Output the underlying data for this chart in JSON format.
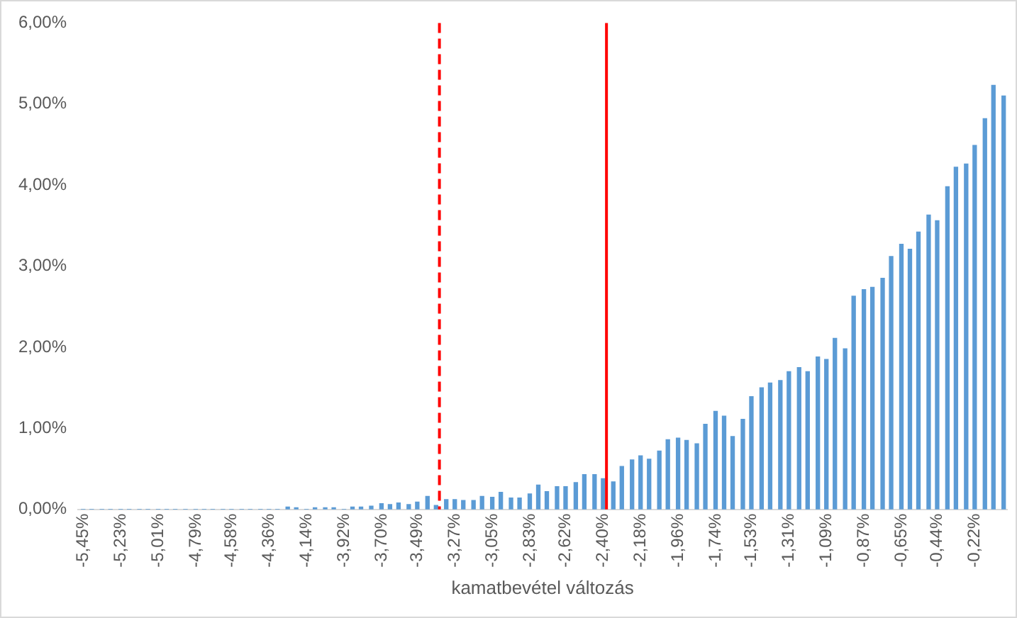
{
  "chart_data": {
    "type": "bar",
    "xlabel": "kamatbevétel változás",
    "color": "#5b9bd5",
    "legend": false,
    "x": [
      -5.45,
      -5.4,
      -5.34,
      -5.29,
      -5.23,
      -5.18,
      -5.12,
      -5.07,
      -5.01,
      -4.96,
      -4.91,
      -4.85,
      -4.79,
      -4.74,
      -4.69,
      -4.63,
      -4.58,
      -4.52,
      -4.47,
      -4.41,
      -4.36,
      -4.31,
      -4.25,
      -4.2,
      -4.14,
      -4.09,
      -4.03,
      -3.98,
      -3.92,
      -3.87,
      -3.82,
      -3.76,
      -3.7,
      -3.65,
      -3.6,
      -3.54,
      -3.49,
      -3.43,
      -3.38,
      -3.32,
      -3.27,
      -3.22,
      -3.16,
      -3.11,
      -3.05,
      -3.0,
      -2.94,
      -2.89,
      -2.83,
      -2.78,
      -2.73,
      -2.67,
      -2.62,
      -2.56,
      -2.51,
      -2.45,
      -2.4,
      -2.34,
      -2.29,
      -2.23,
      -2.18,
      -2.13,
      -2.07,
      -2.02,
      -1.96,
      -1.91,
      -1.85,
      -1.8,
      -1.74,
      -1.69,
      -1.64,
      -1.58,
      -1.53,
      -1.47,
      -1.42,
      -1.36,
      -1.31,
      -1.25,
      -1.2,
      -1.14,
      -1.09,
      -1.04,
      -0.98,
      -0.93,
      -0.87,
      -0.82,
      -0.76,
      -0.71,
      -0.65,
      -0.6,
      -0.55,
      -0.49,
      -0.44,
      -0.38,
      -0.33,
      -0.27,
      -0.22,
      -0.16,
      -0.11,
      -0.05
    ],
    "values": [
      0,
      0,
      0,
      0,
      0,
      0,
      0,
      0,
      0,
      0,
      0,
      0,
      0,
      0,
      0,
      0,
      0,
      0,
      0,
      0,
      0,
      0,
      0.03,
      0.02,
      0,
      0.02,
      0.02,
      0.02,
      0,
      0.03,
      0.03,
      0.04,
      0.07,
      0.06,
      0.08,
      0.06,
      0.09,
      0.16,
      0.05,
      0.12,
      0.12,
      0.11,
      0.11,
      0.16,
      0.15,
      0.21,
      0.14,
      0.14,
      0.19,
      0.3,
      0.22,
      0.28,
      0.28,
      0.33,
      0.43,
      0.43,
      0.38,
      0.34,
      0.53,
      0.61,
      0.66,
      0.62,
      0.72,
      0.86,
      0.88,
      0.85,
      0.81,
      1.05,
      1.21,
      1.15,
      0.9,
      1.11,
      1.39,
      1.5,
      1.56,
      1.59,
      1.7,
      1.75,
      1.7,
      1.88,
      1.85,
      2.11,
      1.98,
      2.63,
      2.71,
      2.74,
      2.85,
      3.12,
      3.27,
      3.21,
      3.42,
      3.63,
      3.56,
      3.98,
      4.22,
      4.26,
      4.49,
      4.82,
      5.23,
      5.1
    ],
    "xlim": [
      -5.48,
      -0.03
    ],
    "xticks": [
      {
        "value": -5.45,
        "label": "-5,45%"
      },
      {
        "value": -5.23,
        "label": "-5,23%"
      },
      {
        "value": -5.01,
        "label": "-5,01%"
      },
      {
        "value": -4.79,
        "label": "-4,79%"
      },
      {
        "value": -4.58,
        "label": "-4,58%"
      },
      {
        "value": -4.36,
        "label": "-4,36%"
      },
      {
        "value": -4.14,
        "label": "-4,14%"
      },
      {
        "value": -3.92,
        "label": "-3,92%"
      },
      {
        "value": -3.7,
        "label": "-3,70%"
      },
      {
        "value": -3.49,
        "label": "-3,49%"
      },
      {
        "value": -3.27,
        "label": "-3,27%"
      },
      {
        "value": -3.05,
        "label": "-3,05%"
      },
      {
        "value": -2.83,
        "label": "-2,83%"
      },
      {
        "value": -2.62,
        "label": "-2,62%"
      },
      {
        "value": -2.4,
        "label": "-2,40%"
      },
      {
        "value": -2.18,
        "label": "-2,18%"
      },
      {
        "value": -1.96,
        "label": "-1,96%"
      },
      {
        "value": -1.74,
        "label": "-1,74%"
      },
      {
        "value": -1.53,
        "label": "-1,53%"
      },
      {
        "value": -1.31,
        "label": "-1,31%"
      },
      {
        "value": -1.09,
        "label": "-1,09%"
      },
      {
        "value": -0.87,
        "label": "-0,87%"
      },
      {
        "value": -0.65,
        "label": "-0,65%"
      },
      {
        "value": -0.44,
        "label": "-0,44%"
      },
      {
        "value": -0.22,
        "label": "-0,22%"
      }
    ],
    "ylim": [
      0,
      6
    ],
    "yticks": [
      {
        "value": 0,
        "label": "0,00%"
      },
      {
        "value": 1,
        "label": "1,00%"
      },
      {
        "value": 2,
        "label": "2,00%"
      },
      {
        "value": 3,
        "label": "3,00%"
      },
      {
        "value": 4,
        "label": "4,00%"
      },
      {
        "value": 5,
        "label": "5,00%"
      },
      {
        "value": 6,
        "label": "6,00%"
      }
    ],
    "ref_lines": [
      {
        "axis": "x",
        "value": -3.36,
        "color": "#ff0000",
        "line_style": "dashed"
      },
      {
        "axis": "x",
        "value": -2.38,
        "color": "#ff0000",
        "line_style": "solid"
      }
    ]
  }
}
